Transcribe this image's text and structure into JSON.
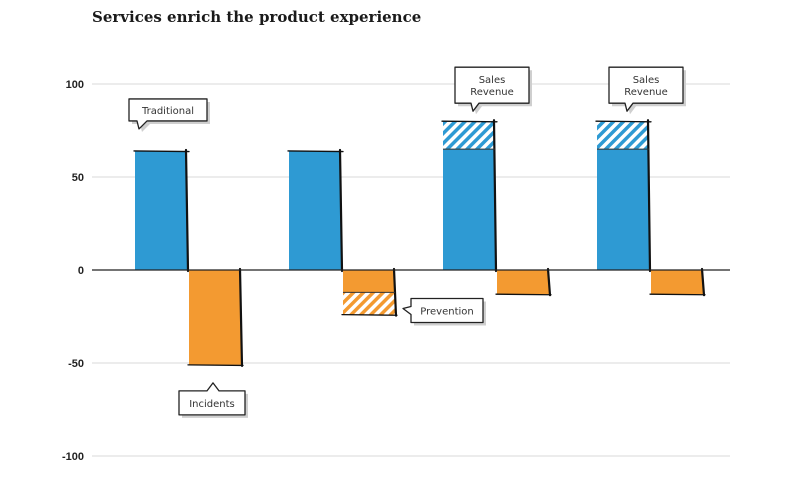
{
  "chart_data": {
    "type": "bar",
    "title": "Services enrich the product experience",
    "xlabel": "",
    "ylabel": "",
    "ylim": [
      -100,
      100
    ],
    "yticks": [
      100,
      50,
      0,
      -50,
      -100
    ],
    "categories": [
      "",
      "",
      "",
      ""
    ],
    "series": [
      {
        "name": "",
        "color": "#2E9AD3",
        "values": [
          64,
          64,
          65,
          65
        ],
        "hatched_extension": [
          0,
          0,
          15,
          15
        ]
      },
      {
        "name": "",
        "color": "#F39A31",
        "values": [
          -51,
          -12,
          -13,
          -13
        ],
        "hatched_extension": [
          0,
          -12,
          0,
          0
        ]
      }
    ],
    "annotations": [
      {
        "text": "Traditional",
        "group": 0,
        "series": 0
      },
      {
        "text": "Incidents",
        "group": 0,
        "series": 1
      },
      {
        "text": "Prevention",
        "group": 1,
        "series": 1
      },
      {
        "text": "Sales Revenue",
        "lines": [
          "Sales",
          "Revenue"
        ],
        "group": 2,
        "series": 0
      },
      {
        "text": "Sales Revenue",
        "lines": [
          "Sales",
          "Revenue"
        ],
        "group": 3,
        "series": 0
      }
    ],
    "grid": true,
    "legend": "none"
  }
}
